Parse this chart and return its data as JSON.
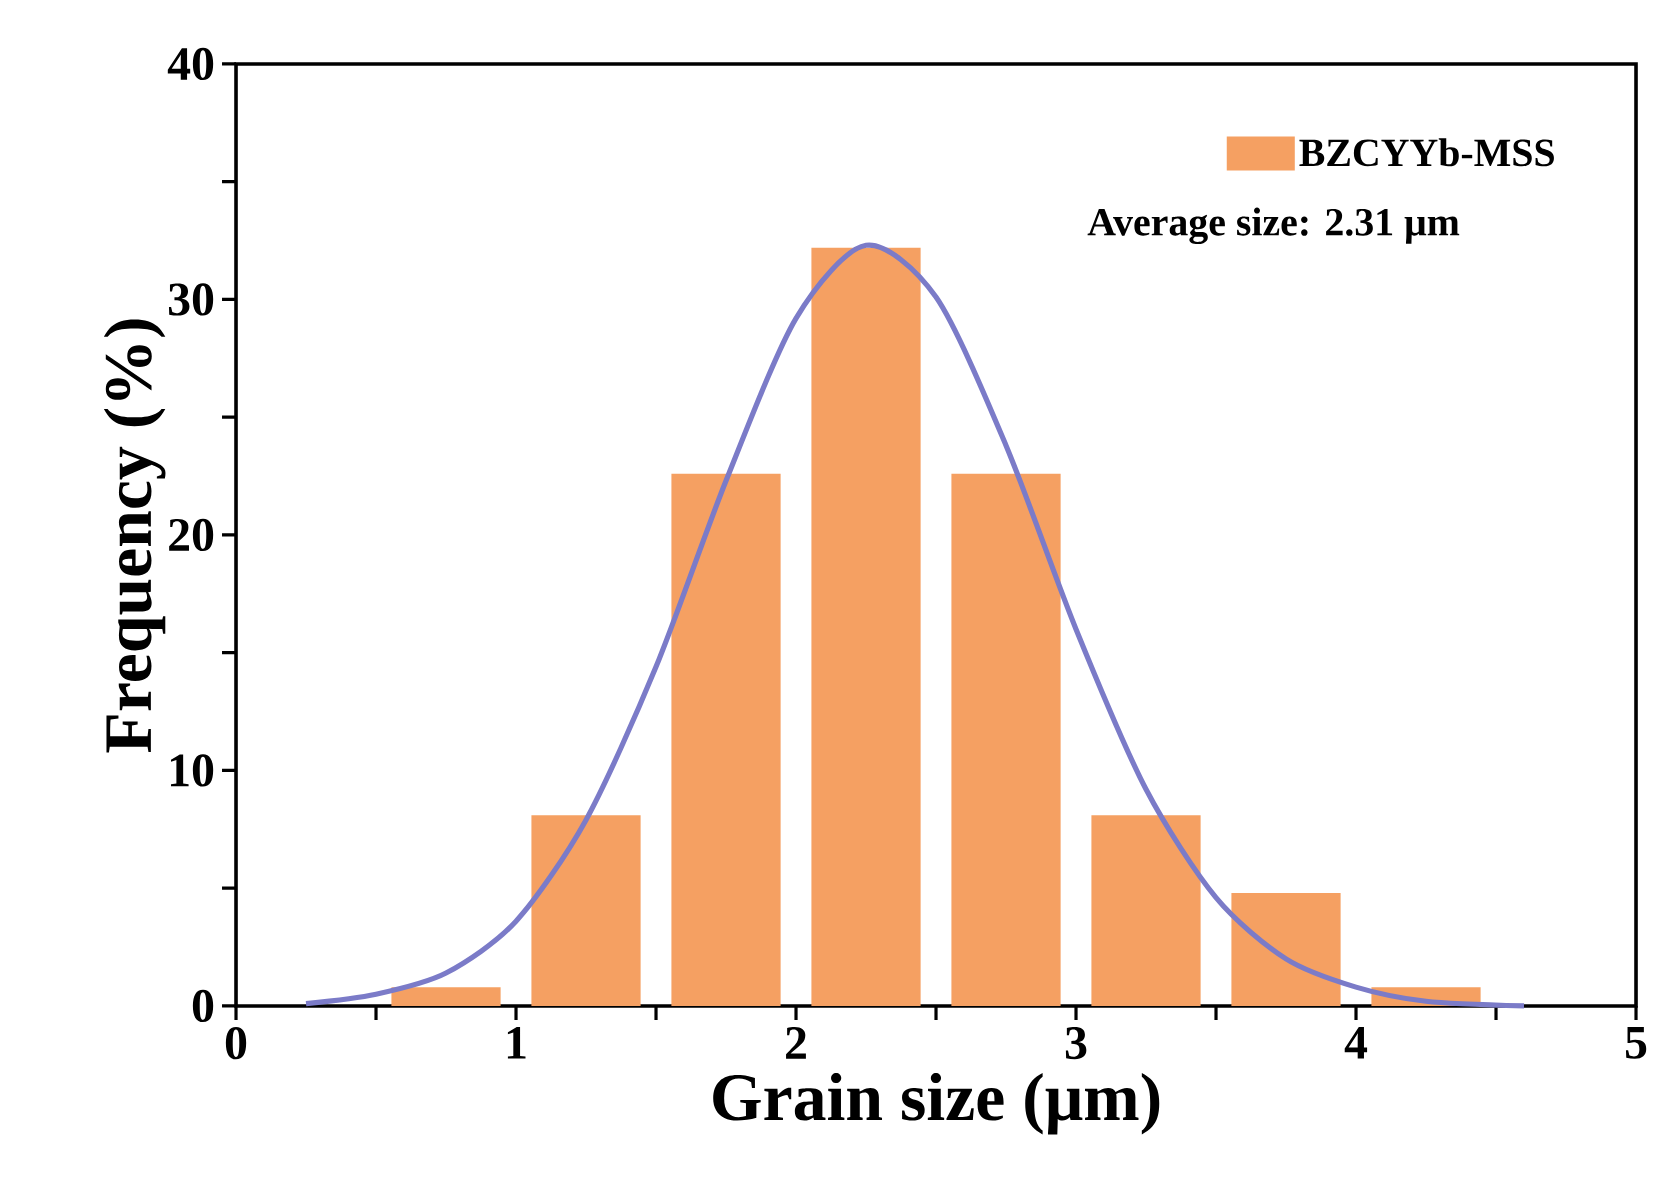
{
  "chart_data": {
    "type": "bar",
    "xlabel": "Grain size (μm)",
    "ylabel": "Frequency (%)",
    "x": [
      0.75,
      1.25,
      1.75,
      2.25,
      2.75,
      3.25,
      3.75,
      4.25
    ],
    "series": [
      {
        "name": "BZCYYb-MSS",
        "color": "#f5a062",
        "values": [
          0.8,
          8.1,
          22.6,
          32.2,
          22.6,
          8.1,
          4.8,
          0.8
        ]
      },
      {
        "type": "line",
        "color": "#7b7bc8",
        "x": [
          0.25,
          0.5,
          0.75,
          1.0,
          1.25,
          1.5,
          1.75,
          2.0,
          2.25,
          2.5,
          2.75,
          3.0,
          3.25,
          3.5,
          3.75,
          4.0,
          4.25,
          4.6
        ],
        "values": [
          0.1,
          0.5,
          1.4,
          3.6,
          7.9,
          14.4,
          22.3,
          29.2,
          32.3,
          30.1,
          23.8,
          16.0,
          9.2,
          4.6,
          2.0,
          0.8,
          0.2,
          0.0
        ]
      }
    ],
    "xlim": [
      0,
      5
    ],
    "ylim": [
      0,
      40
    ],
    "xticks": [
      0,
      {
        "value": 0.5,
        "label": null
      },
      1,
      {
        "value": 1.5,
        "label": null
      },
      2,
      {
        "value": 2.5,
        "label": null
      },
      3,
      {
        "value": 3.5,
        "label": null
      },
      4,
      {
        "value": 4.5,
        "label": null
      },
      5
    ],
    "yticks": [
      0,
      {
        "value": 5,
        "label": null
      },
      10,
      {
        "value": 15,
        "label": null
      },
      20,
      {
        "value": 25,
        "label": null
      },
      30,
      {
        "value": 35,
        "label": null
      },
      40
    ],
    "legend": "top right",
    "annotations": [
      "Average size: 2.31 μm"
    ]
  }
}
